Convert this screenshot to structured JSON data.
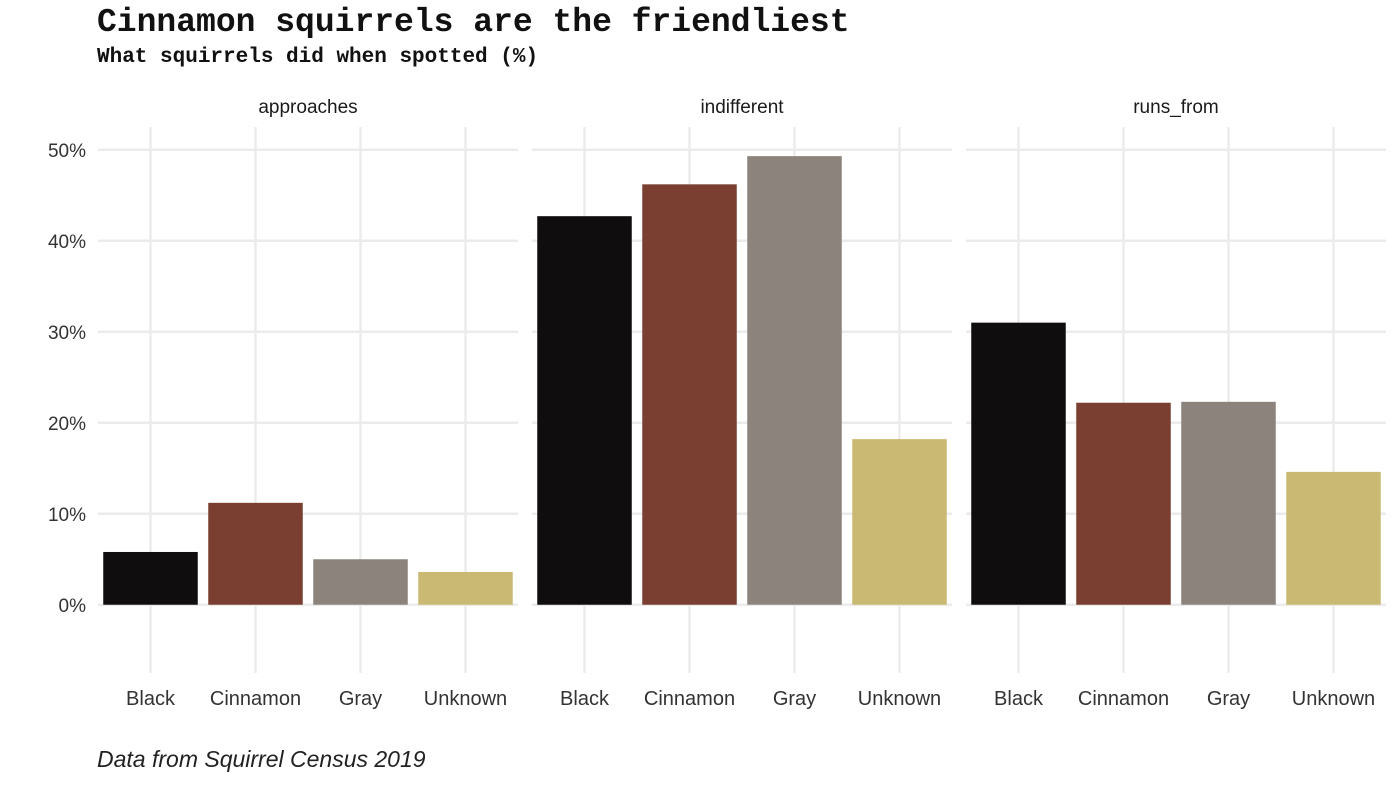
{
  "title": "Cinnamon squirrels are the friendliest",
  "subtitle": "What squirrels did when spotted (%)",
  "caption": "Data from Squirrel Census 2019",
  "chart_data": {
    "type": "bar",
    "title": "Cinnamon squirrels are the friendliest",
    "subtitle": "What squirrels did when spotted (%)",
    "xlabel": "",
    "ylabel": "",
    "categories": [
      "Black",
      "Cinnamon",
      "Gray",
      "Unknown"
    ],
    "colors": [
      "#0f0d0d",
      "#7a3f30",
      "#8c837c",
      "#c9b972"
    ],
    "ylim": [
      -7.5,
      52.5
    ],
    "yticks": [
      0,
      10,
      20,
      30,
      40,
      50
    ],
    "ytick_labels": [
      "0%",
      "10%",
      "20%",
      "30%",
      "40%",
      "50%"
    ],
    "grid": true,
    "legend": "none",
    "facets": [
      {
        "name": "approaches",
        "values": [
          5.8,
          11.2,
          5.0,
          3.6
        ]
      },
      {
        "name": "indifferent",
        "values": [
          42.7,
          46.2,
          49.3,
          18.2
        ]
      },
      {
        "name": "runs_from",
        "values": [
          31.0,
          22.2,
          22.3,
          14.6
        ]
      }
    ]
  }
}
